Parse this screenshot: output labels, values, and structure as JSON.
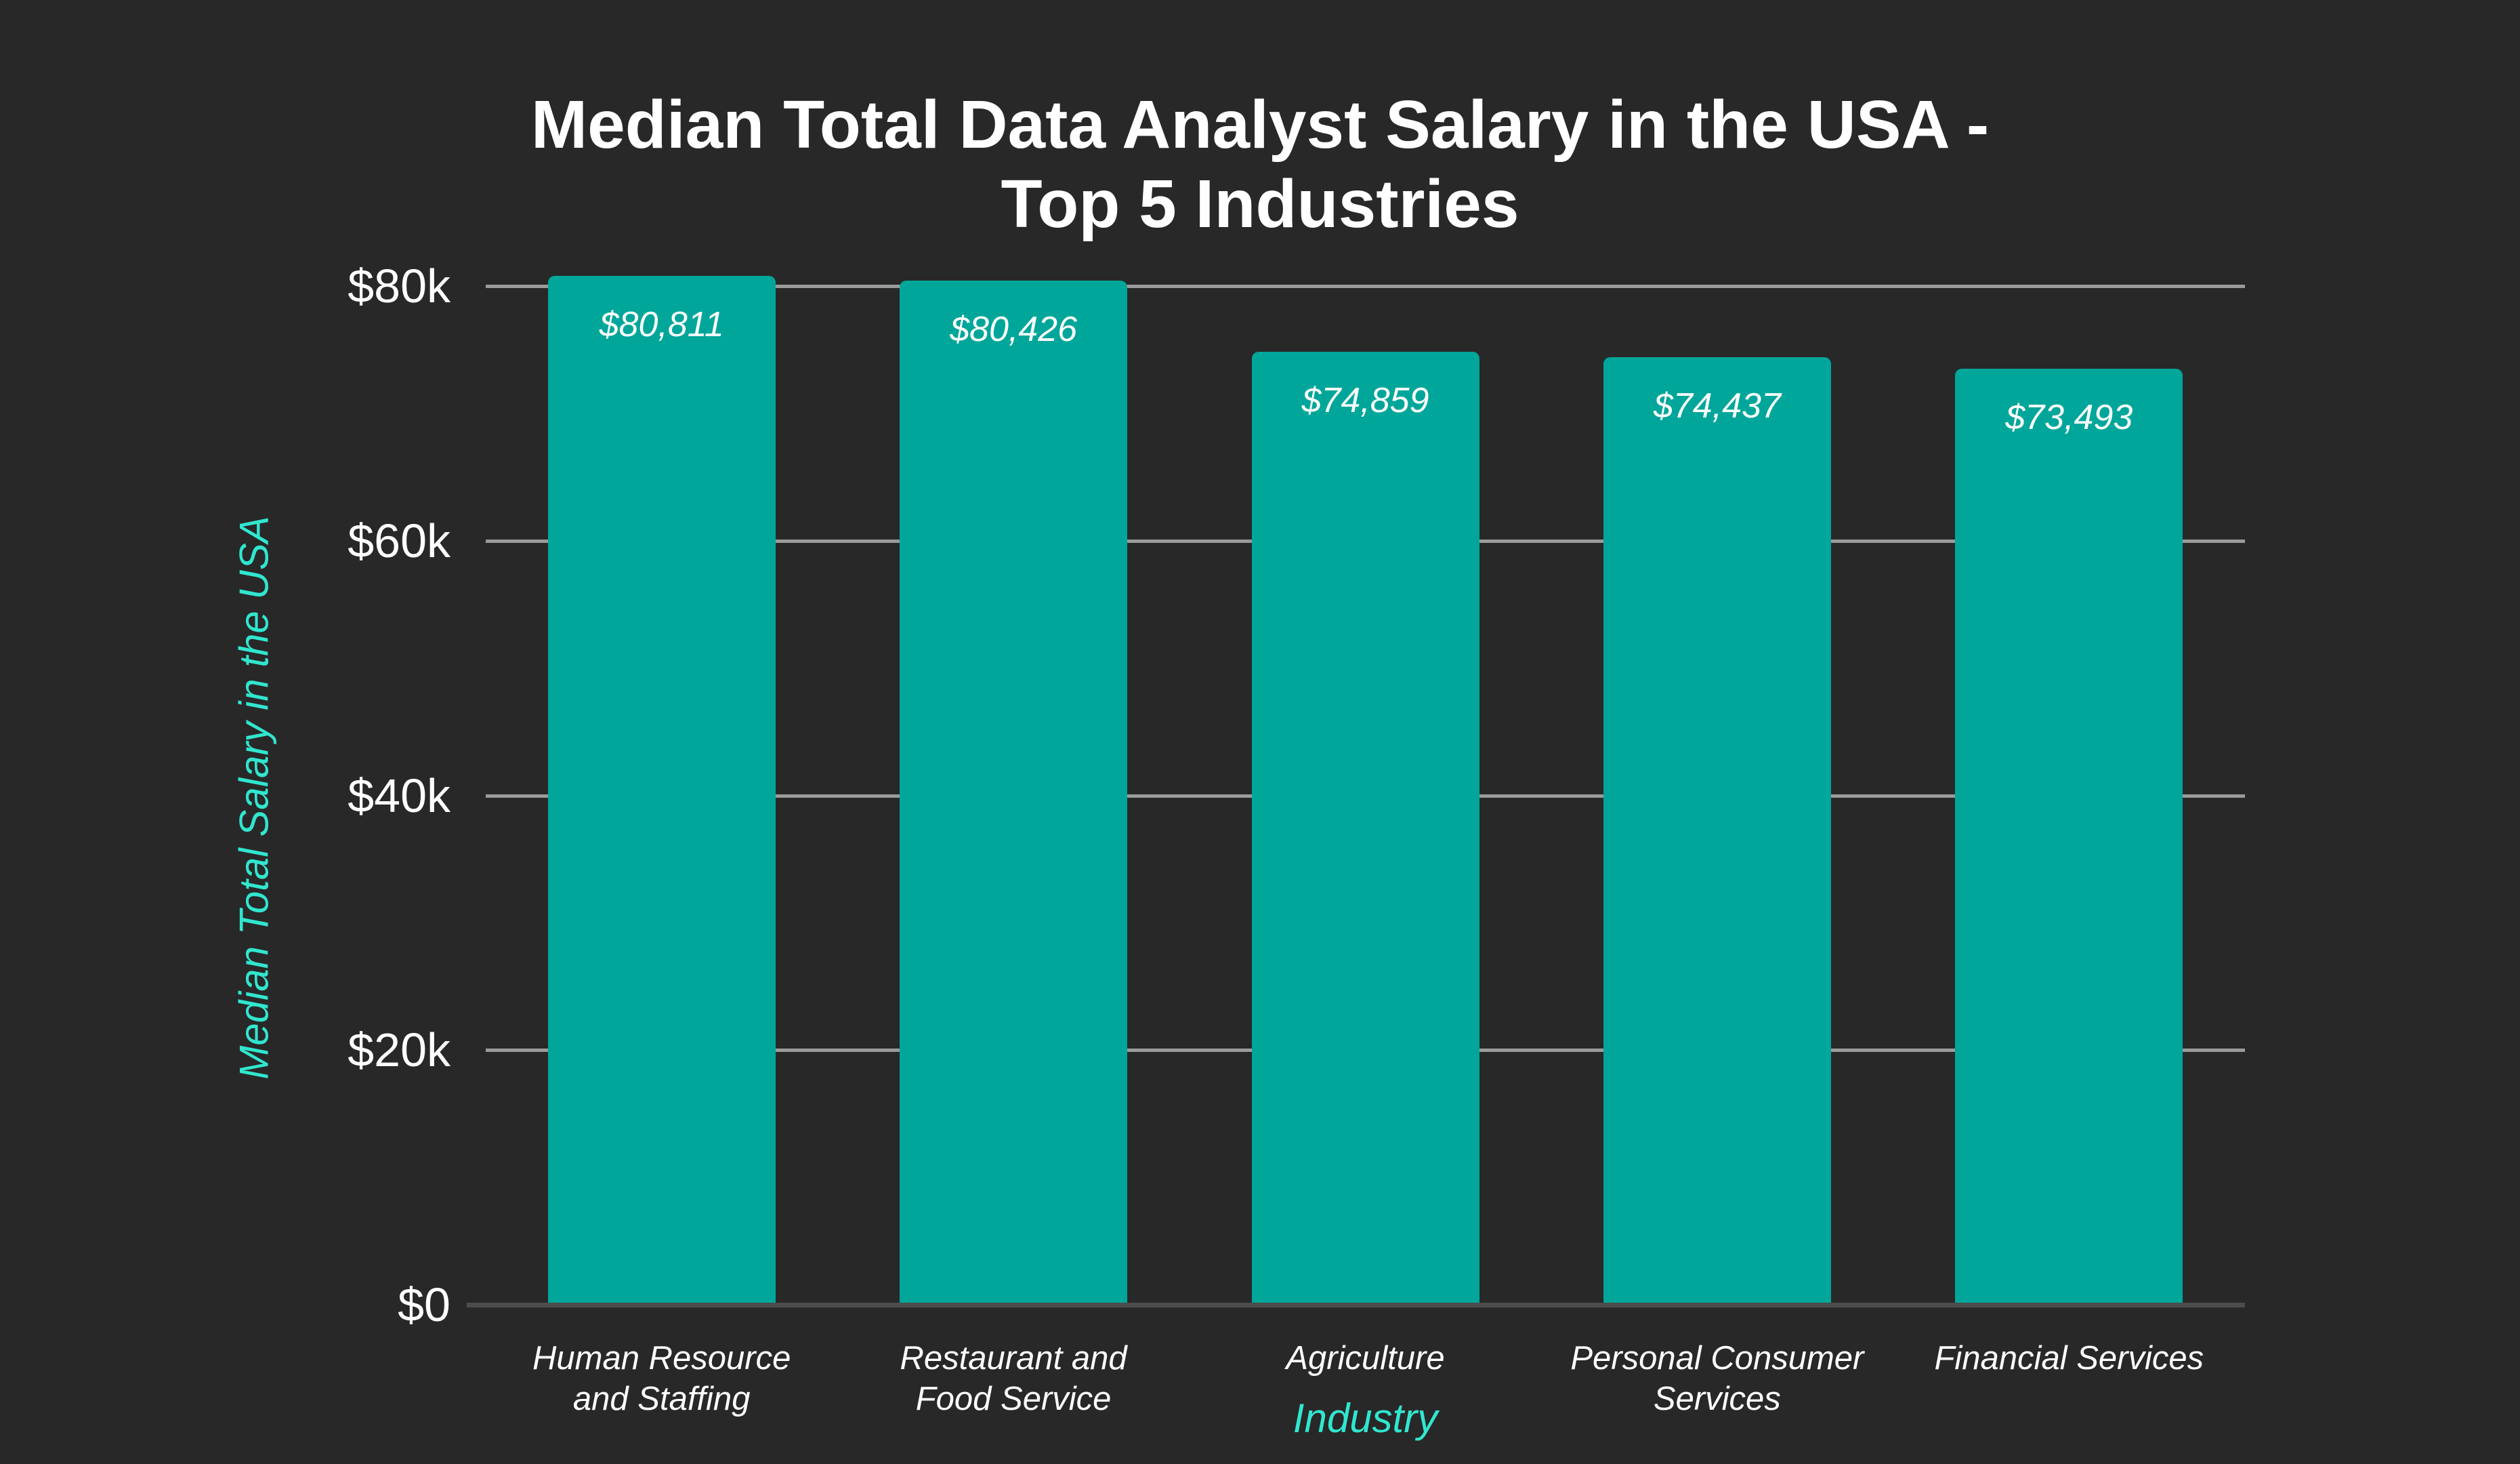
{
  "chart": {
    "title_lines": [
      "Median Total Data Analyst Salary in the USA -",
      "Top 5 Industries"
    ]
  },
  "colors": {
    "background": "#282828",
    "bar_fill": "#00A69A",
    "axis_title_accent": "#31E6CF",
    "text": "#FFFFFF",
    "gridline": "#9B9B9B",
    "baseline": "#4C4C4C"
  },
  "chart_data": {
    "type": "bar",
    "title": "Median Total Data Analyst Salary in the USA - Top 5 Industries",
    "categories": [
      "Human Resource and Staffing",
      "Restaurant and Food Service",
      "Agriculture",
      "Personal Consumer Services",
      "Financial Services"
    ],
    "values": [
      80811,
      80426,
      74859,
      74437,
      73493
    ],
    "value_labels": [
      "$80,811",
      "$80,426",
      "$74,859",
      "$74,437",
      "$73,493"
    ],
    "xlabel": "Industry",
    "ylabel": "Median Total Salary in the USA",
    "ylim": [
      0,
      80000
    ],
    "yticks": [
      {
        "value": 0,
        "label": "$0"
      },
      {
        "value": 20000,
        "label": "$20k"
      },
      {
        "value": 40000,
        "label": "$40k"
      },
      {
        "value": 60000,
        "label": "$60k"
      },
      {
        "value": 80000,
        "label": "$80k"
      }
    ],
    "grid": "horizontal",
    "legend": "none",
    "bar_color": "#00A69A"
  }
}
